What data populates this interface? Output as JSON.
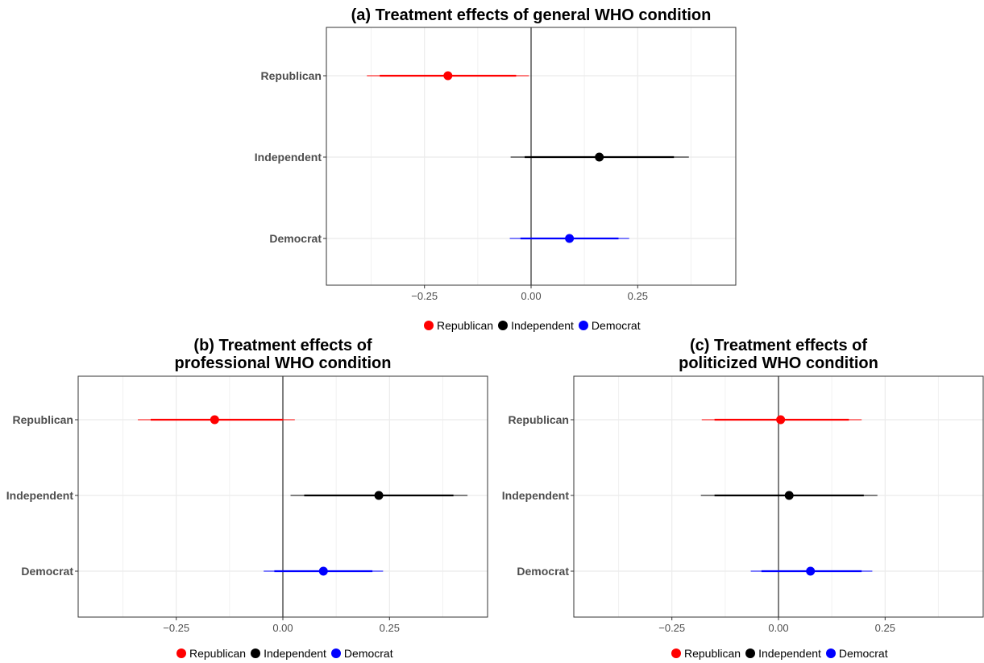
{
  "chart_data": [
    {
      "type": "scatter",
      "title": "(a) Treatment effects of general WHO condition",
      "title_lines": [
        "(a) Treatment effects of general WHO condition"
      ],
      "categories": [
        "Republican",
        "Independent",
        "Democrat"
      ],
      "xlim": [
        -0.48,
        0.48
      ],
      "xticks": [
        -0.25,
        0.0,
        0.25
      ],
      "xtick_labels": [
        "−0.25",
        "0.00",
        "0.25"
      ],
      "grid": true,
      "legend_position": "bottom",
      "series": [
        {
          "name": "Republican",
          "color": "#ff0000",
          "estimate": -0.195,
          "ci90": [
            -0.355,
            -0.035
          ],
          "ci95": [
            -0.385,
            -0.005
          ]
        },
        {
          "name": "Independent",
          "color": "#000000",
          "estimate": 0.16,
          "ci90": [
            -0.015,
            0.335
          ],
          "ci95": [
            -0.048,
            0.37
          ]
        },
        {
          "name": "Democrat",
          "color": "#0000ff",
          "estimate": 0.09,
          "ci90": [
            -0.025,
            0.205
          ],
          "ci95": [
            -0.05,
            0.23
          ]
        }
      ]
    },
    {
      "type": "scatter",
      "title": "(b) Treatment effects of professional WHO condition",
      "title_lines": [
        "(b) Treatment effects of",
        "professional WHO condition"
      ],
      "categories": [
        "Republican",
        "Independent",
        "Democrat"
      ],
      "xlim": [
        -0.48,
        0.48
      ],
      "xticks": [
        -0.25,
        0.0,
        0.25
      ],
      "xtick_labels": [
        "−0.25",
        "0.00",
        "0.25"
      ],
      "grid": true,
      "legend_position": "bottom",
      "series": [
        {
          "name": "Republican",
          "color": "#ff0000",
          "estimate": -0.16,
          "ci90": [
            -0.31,
            0.0
          ],
          "ci95": [
            -0.34,
            0.028
          ]
        },
        {
          "name": "Independent",
          "color": "#000000",
          "estimate": 0.225,
          "ci90": [
            0.05,
            0.4
          ],
          "ci95": [
            0.018,
            0.433
          ]
        },
        {
          "name": "Democrat",
          "color": "#0000ff",
          "estimate": 0.095,
          "ci90": [
            -0.02,
            0.21
          ],
          "ci95": [
            -0.045,
            0.235
          ]
        }
      ]
    },
    {
      "type": "scatter",
      "title": "(c) Treatment effects of politicized WHO condition",
      "title_lines": [
        "(c) Treatment effects of",
        "politicized WHO condition"
      ],
      "categories": [
        "Republican",
        "Independent",
        "Democrat"
      ],
      "xlim": [
        -0.48,
        0.48
      ],
      "xticks": [
        -0.25,
        0.0,
        0.25
      ],
      "xtick_labels": [
        "−0.25",
        "0.00",
        "0.25"
      ],
      "grid": true,
      "legend_position": "bottom",
      "series": [
        {
          "name": "Republican",
          "color": "#ff0000",
          "estimate": 0.005,
          "ci90": [
            -0.15,
            0.165
          ],
          "ci95": [
            -0.18,
            0.195
          ]
        },
        {
          "name": "Independent",
          "color": "#000000",
          "estimate": 0.025,
          "ci90": [
            -0.15,
            0.2
          ],
          "ci95": [
            -0.182,
            0.232
          ]
        },
        {
          "name": "Democrat",
          "color": "#0000ff",
          "estimate": 0.075,
          "ci90": [
            -0.04,
            0.195
          ],
          "ci95": [
            -0.065,
            0.22
          ]
        }
      ]
    }
  ]
}
